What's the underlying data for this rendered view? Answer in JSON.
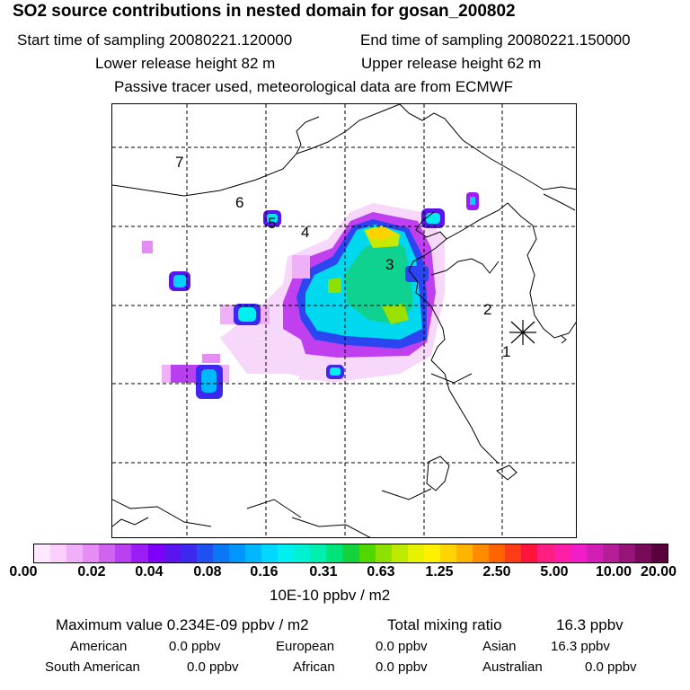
{
  "header": {
    "title": "SO2 source contributions in nested domain for gosan_200802",
    "start_label": "Start time of sampling 20080221.120000",
    "end_label": "End time of sampling 20080221.150000",
    "lower_label": "Lower release height   82 m",
    "upper_label": "Upper release height   62 m",
    "tracer_label": "Passive tracer used, meteorological data are from ECMWF"
  },
  "map": {
    "markers": [
      "1",
      "2",
      "3",
      "4",
      "5",
      "6",
      "7"
    ],
    "receptor_icon": "asterisk-icon"
  },
  "colorbar": {
    "ticks": [
      "0.00",
      "0.02",
      "0.04",
      "0.08",
      "0.16",
      "0.31",
      "0.63",
      "1.25",
      "2.50",
      "5.00",
      "10.00",
      "20.00"
    ],
    "unit": "10E-10 ppbv / m2",
    "colors": [
      "#ffe8ff",
      "#fad0fa",
      "#f0b0f8",
      "#e58cf5",
      "#d064f0",
      "#b840f0",
      "#9d1ef5",
      "#7d00f8",
      "#5a14ee",
      "#3c28ee",
      "#1f50f0",
      "#0a78f5",
      "#0096ff",
      "#00b8ff",
      "#00d8ff",
      "#00f0f0",
      "#00f0d2",
      "#00eeb0",
      "#00e27a",
      "#14d23c",
      "#50d700",
      "#8ee000",
      "#beea00",
      "#e6f200",
      "#fff000",
      "#ffd400",
      "#ffb400",
      "#ff8c00",
      "#ff6400",
      "#ff3c14",
      "#ff143c",
      "#ff1e82",
      "#ff1ea8",
      "#f01ec8",
      "#d21eb4",
      "#b41e96",
      "#961478",
      "#780a5a",
      "#5a003c"
    ]
  },
  "stats": {
    "max_label": "Maximum value  0.234E-09 ppbv / m2",
    "total_label": "Total mixing ratio",
    "total_value": "16.3 ppbv",
    "american_label": "American",
    "american_value": "0.0 ppbv",
    "european_label": "European",
    "european_value": "0.0 ppbv",
    "asian_label": "Asian",
    "asian_value": "16.3 ppbv",
    "south_american_label": "South American",
    "south_american_value": "0.0 ppbv",
    "african_label": "African",
    "african_value": "0.0 ppbv",
    "australian_label": "Australian",
    "australian_value": "0.0 ppbv"
  }
}
